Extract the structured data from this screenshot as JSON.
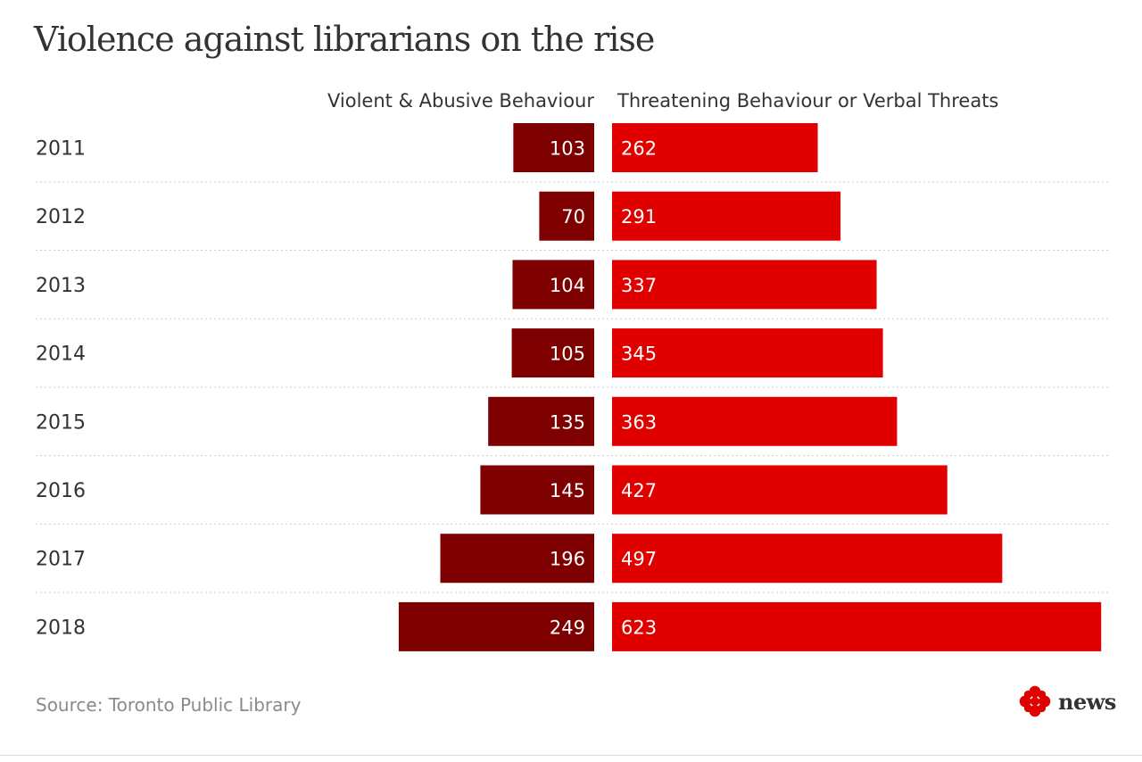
{
  "colors": {
    "violent": "#7e0000",
    "threatening": "#e00000",
    "text": "#333333",
    "gridline": "#cccccc",
    "source": "#8a8a8a",
    "logo": "#e00000"
  },
  "chart_data": {
    "type": "bar",
    "orientation": "horizontal-diverging",
    "title": "Violence against librarians on the rise",
    "categories": [
      "2011",
      "2012",
      "2013",
      "2014",
      "2015",
      "2016",
      "2017",
      "2018"
    ],
    "series": [
      {
        "name": "Violent & Abusive Behaviour",
        "direction": "left",
        "values": [
          103,
          70,
          104,
          105,
          135,
          145,
          196,
          249
        ]
      },
      {
        "name": "Threatening Behaviour or Verbal Threats",
        "direction": "right",
        "values": [
          262,
          291,
          337,
          345,
          363,
          427,
          497,
          623
        ]
      }
    ],
    "data_labels": true,
    "gridlines": "dotted row separators"
  },
  "source": "Source: Toronto Public Library",
  "brand": {
    "icon": "cbc-gem-logo",
    "text": "news"
  }
}
